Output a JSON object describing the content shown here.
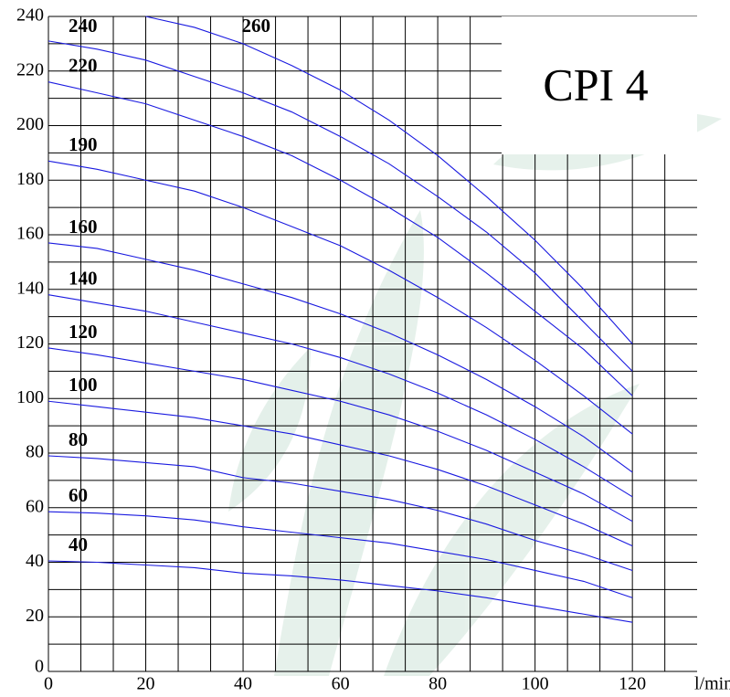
{
  "chart_data": {
    "type": "line",
    "title": "CPI 4",
    "x_label": "l/min",
    "x": [
      0,
      10,
      20,
      30,
      40,
      50,
      60,
      70,
      80,
      90,
      100,
      110,
      120
    ],
    "series": [
      {
        "name": "40",
        "color": "#1a1ae0",
        "values": [
          40.5,
          40,
          39,
          38,
          36,
          35,
          33.5,
          31.5,
          29.5,
          27,
          24,
          21,
          18
        ]
      },
      {
        "name": "60",
        "color": "#1a1ae0",
        "values": [
          58.5,
          58,
          57,
          55.5,
          53,
          51,
          49,
          47,
          44,
          41,
          37,
          33,
          27
        ]
      },
      {
        "name": "80",
        "color": "#1a1ae0",
        "values": [
          79,
          78,
          76.5,
          75,
          71,
          69,
          66,
          63,
          59,
          54,
          48,
          43,
          37
        ]
      },
      {
        "name": "100",
        "color": "#1a1ae0",
        "values": [
          99,
          97,
          95,
          93,
          90,
          87,
          83,
          79,
          74,
          68,
          61,
          54,
          46
        ]
      },
      {
        "name": "120",
        "color": "#1a1ae0",
        "values": [
          118.5,
          116,
          113,
          110,
          107,
          103,
          99,
          94,
          88,
          81,
          73,
          65,
          55
        ]
      },
      {
        "name": "140",
        "color": "#1a1ae0",
        "values": [
          138,
          135,
          132,
          128,
          124,
          120,
          115,
          109,
          102,
          94,
          85,
          75,
          64
        ]
      },
      {
        "name": "160",
        "color": "#1a1ae0",
        "values": [
          157,
          155,
          151,
          147,
          142,
          137,
          131,
          124,
          116,
          107,
          97,
          86,
          73
        ]
      },
      {
        "name": "190",
        "color": "#1a1ae0",
        "values": [
          187,
          184,
          180,
          176,
          170,
          163,
          156,
          147,
          137,
          126,
          114,
          101,
          87
        ]
      },
      {
        "name": "220",
        "color": "#1a1ae0",
        "values": [
          216,
          212,
          208,
          202,
          196,
          189,
          180,
          170,
          159,
          146,
          132,
          118,
          101
        ]
      },
      {
        "name": "240",
        "color": "#1a1ae0",
        "values": [
          231,
          228,
          224,
          218,
          212,
          205,
          196,
          186,
          174,
          161,
          146,
          128,
          110
        ]
      },
      {
        "name": "260",
        "color": "#1a1ae0",
        "values": [
          null,
          null,
          240,
          236,
          230,
          222,
          213,
          202,
          189,
          174,
          158,
          140,
          120
        ]
      }
    ],
    "xlim": [
      0,
      133.3
    ],
    "ylim": [
      0,
      240
    ],
    "xticks": [
      0,
      20,
      40,
      60,
      80,
      100,
      120
    ],
    "yticks": [
      0,
      20,
      40,
      60,
      80,
      100,
      120,
      140,
      160,
      180,
      200,
      220,
      240
    ],
    "x_minor_per_major": 3,
    "y_minor_per_major": 2,
    "grid": true
  }
}
